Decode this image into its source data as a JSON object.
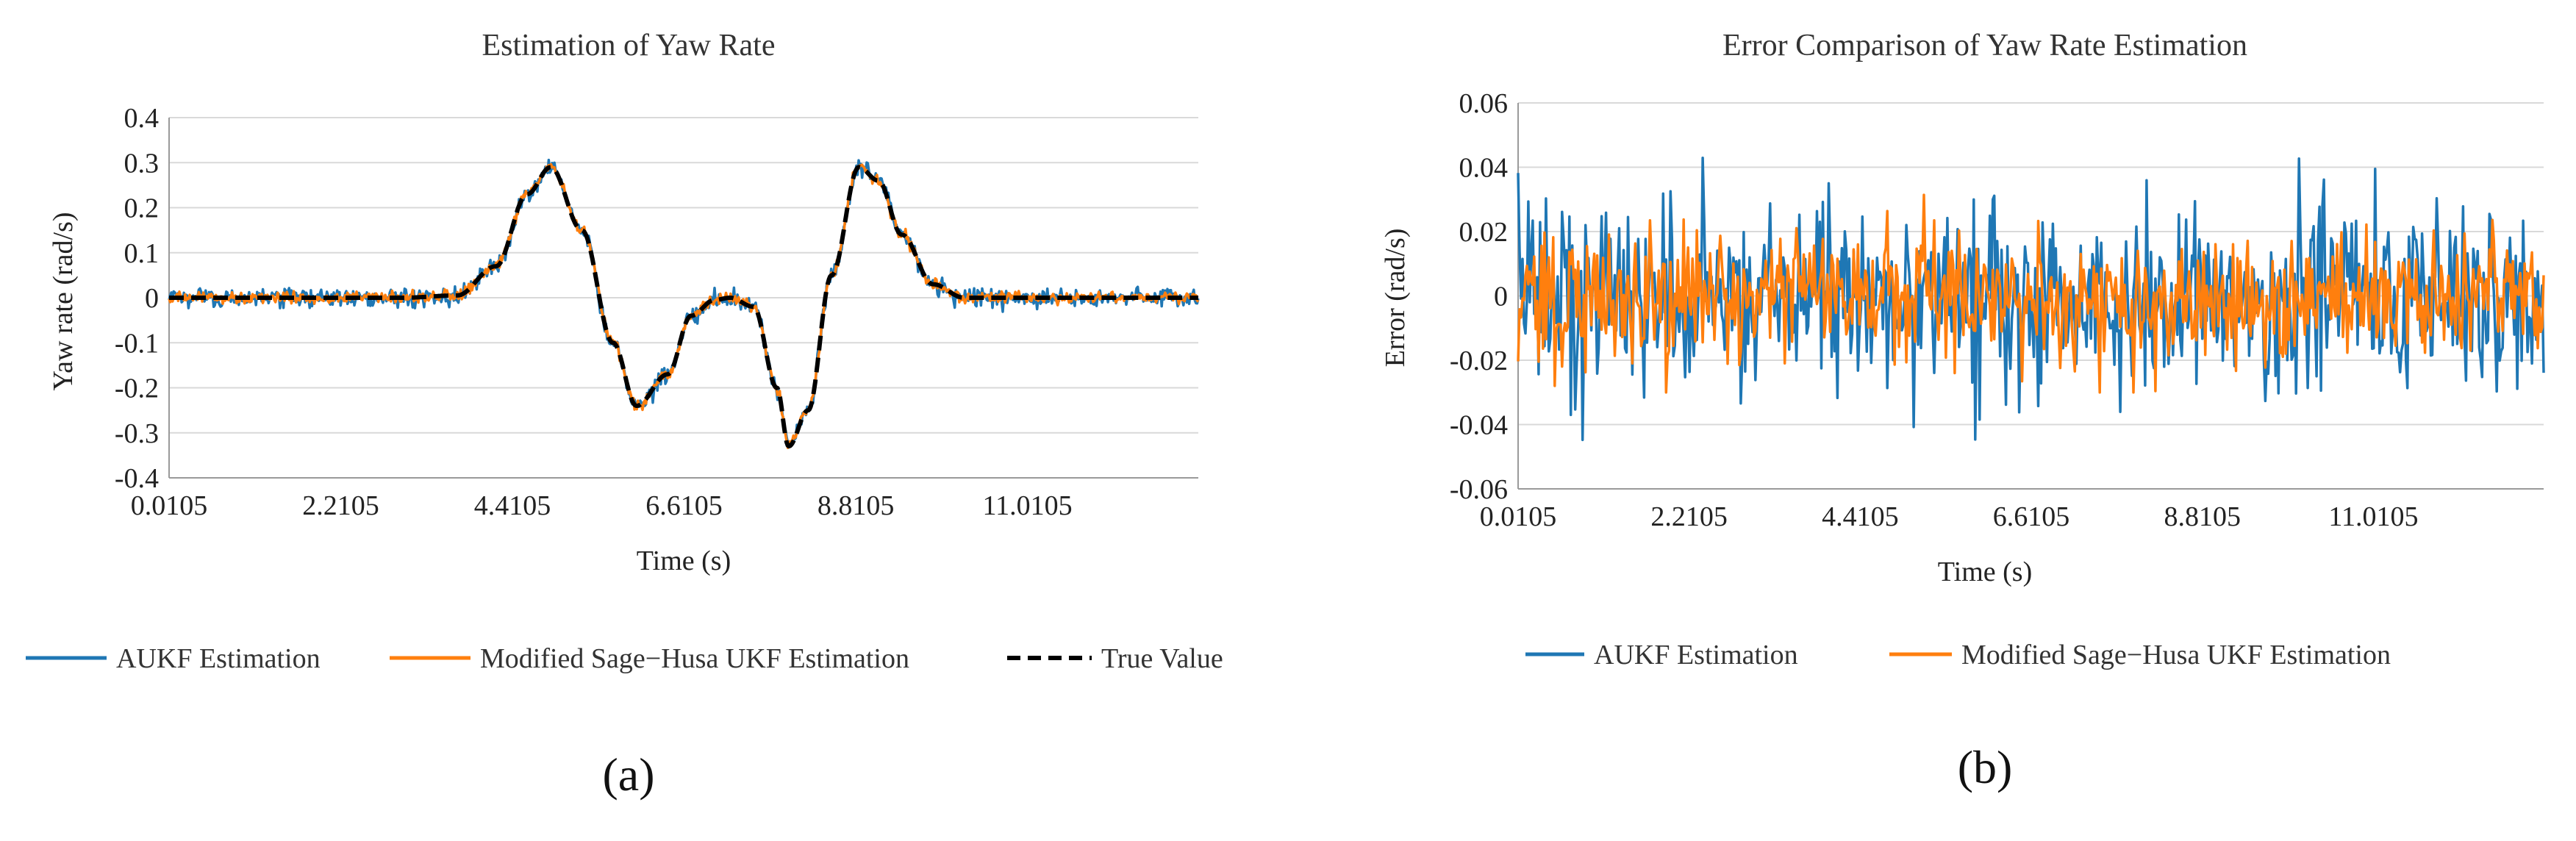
{
  "chart_data": [
    {
      "type": "line",
      "panel_label": "(a)",
      "title": "Estimation of Yaw Rate",
      "xlabel": "Time (s)",
      "ylabel": "Yaw rate (rad/s)",
      "xlim": [
        0.0105,
        13.2
      ],
      "ylim": [
        -0.4,
        0.4
      ],
      "yticks": [
        "0.4",
        "0.3",
        "0.2",
        "0.1",
        "0",
        "-0.1",
        "-0.2",
        "-0.3",
        "-0.4"
      ],
      "xticks": [
        "0.0105",
        "2.2105",
        "4.4105",
        "6.6105",
        "8.8105",
        "11.0105"
      ],
      "grid": "horizontal",
      "legend_position": "bottom",
      "true_value_profile": {
        "x": [
          0.0105,
          3.0,
          3.7,
          4.2,
          4.6,
          4.9,
          5.3,
          5.7,
          6.0,
          6.4,
          6.7,
          7.0,
          7.2,
          7.5,
          7.8,
          7.95,
          8.2,
          8.5,
          8.85,
          9.1,
          9.4,
          9.8,
          10.2,
          11.0,
          13.2
        ],
        "y": [
          0,
          0,
          0.005,
          0.07,
          0.23,
          0.29,
          0.15,
          -0.1,
          -0.24,
          -0.17,
          -0.04,
          -0.005,
          0,
          -0.02,
          -0.2,
          -0.33,
          -0.25,
          0.05,
          0.29,
          0.26,
          0.14,
          0.03,
          0,
          0,
          0
        ]
      },
      "series": [
        {
          "name": "AUKF Estimation",
          "color": "#1f77b4",
          "style": "solid",
          "noise_amplitude": 0.02
        },
        {
          "name": "Modified Sage−Husa UKF Estimation",
          "color": "#ff7f0e",
          "style": "solid",
          "noise_amplitude": 0.012
        },
        {
          "name": "True Value",
          "color": "#000000",
          "style": "dashed",
          "noise_amplitude": 0
        }
      ]
    },
    {
      "type": "line",
      "panel_label": "(b)",
      "title": "Error Comparison of Yaw Rate Estimation",
      "xlabel": "Time (s)",
      "ylabel": "Error (rad/s)",
      "xlim": [
        0.0105,
        13.2
      ],
      "ylim": [
        -0.06,
        0.06
      ],
      "yticks": [
        "0.06",
        "0.04",
        "0.02",
        "0",
        "-0.02",
        "-0.04",
        "-0.06"
      ],
      "xticks": [
        "0.0105",
        "2.2105",
        "4.4105",
        "6.6105",
        "8.8105",
        "11.0105"
      ],
      "grid": "horizontal",
      "legend_position": "bottom",
      "series": [
        {
          "name": "AUKF Estimation",
          "color": "#1f77b4",
          "style": "solid",
          "error_range": [
            -0.047,
            0.048
          ]
        },
        {
          "name": "Modified Sage−Husa UKF Estimation",
          "color": "#ff7f0e",
          "style": "solid",
          "error_range": [
            -0.03,
            0.035
          ]
        }
      ]
    }
  ]
}
